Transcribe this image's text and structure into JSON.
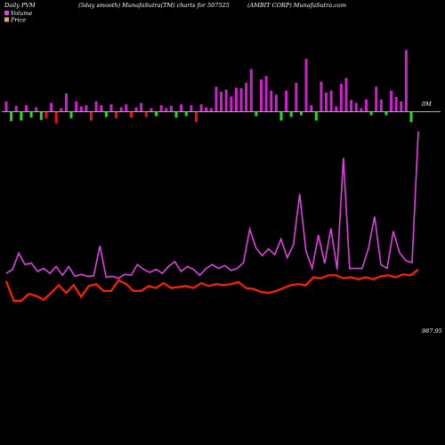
{
  "header": {
    "left": "Daily PVM",
    "mid": "(5day smooth) MunafaSutra(TM) charts for 507525",
    "right": "(AMBIT CORP) MunafaSutra.com"
  },
  "legend": {
    "volume_label": "Volume",
    "price_label": "Price",
    "volume_color": "#e040e0",
    "price_color": "#ff9966"
  },
  "labels": {
    "zero_volume": "0M",
    "last_price": "987.95"
  },
  "colors": {
    "background": "#000000",
    "zero_line": "#aaaaaa",
    "volume_up": "#cc22cc",
    "volume_down_green": "#22dd22",
    "volume_down_red": "#ee1111",
    "pvm_line": "#e040e0",
    "price_line": "#ff2200"
  },
  "chart_data": {
    "type": "bar-line",
    "title": "Daily PVM (5day smooth) MunafaSutra(TM) charts for 507525",
    "volume_bars": [
      {
        "v": 0.35,
        "c": "purple"
      },
      {
        "v": -0.32,
        "c": "green"
      },
      {
        "v": 0.2,
        "c": "purple"
      },
      {
        "v": -0.3,
        "c": "green"
      },
      {
        "v": 0.22,
        "c": "purple"
      },
      {
        "v": -0.2,
        "c": "green"
      },
      {
        "v": 0.15,
        "c": "purple"
      },
      {
        "v": -0.28,
        "c": "green"
      },
      {
        "v": -0.22,
        "c": "red"
      },
      {
        "v": 0.3,
        "c": "purple"
      },
      {
        "v": -0.4,
        "c": "red"
      },
      {
        "v": 0.12,
        "c": "purple"
      },
      {
        "v": 0.62,
        "c": "purple"
      },
      {
        "v": -0.22,
        "c": "green"
      },
      {
        "v": 0.35,
        "c": "purple"
      },
      {
        "v": 0.18,
        "c": "purple"
      },
      {
        "v": 0.22,
        "c": "purple"
      },
      {
        "v": -0.3,
        "c": "red"
      },
      {
        "v": 0.35,
        "c": "purple"
      },
      {
        "v": 0.22,
        "c": "purple"
      },
      {
        "v": -0.18,
        "c": "green"
      },
      {
        "v": 0.25,
        "c": "purple"
      },
      {
        "v": -0.22,
        "c": "red"
      },
      {
        "v": 0.15,
        "c": "purple"
      },
      {
        "v": 0.25,
        "c": "purple"
      },
      {
        "v": -0.2,
        "c": "red"
      },
      {
        "v": 0.15,
        "c": "purple"
      },
      {
        "v": 0.3,
        "c": "purple"
      },
      {
        "v": -0.18,
        "c": "red"
      },
      {
        "v": 0.12,
        "c": "purple"
      },
      {
        "v": -0.15,
        "c": "green"
      },
      {
        "v": 0.22,
        "c": "purple"
      },
      {
        "v": 0.12,
        "c": "purple"
      },
      {
        "v": 0.2,
        "c": "purple"
      },
      {
        "v": -0.2,
        "c": "green"
      },
      {
        "v": 0.25,
        "c": "purple"
      },
      {
        "v": -0.15,
        "c": "green"
      },
      {
        "v": 0.22,
        "c": "purple"
      },
      {
        "v": -0.35,
        "c": "red"
      },
      {
        "v": 0.25,
        "c": "purple"
      },
      {
        "v": 0.15,
        "c": "purple"
      },
      {
        "v": 0.12,
        "c": "purple"
      },
      {
        "v": 0.85,
        "c": "purple"
      },
      {
        "v": 0.68,
        "c": "purple"
      },
      {
        "v": 0.75,
        "c": "purple"
      },
      {
        "v": 0.52,
        "c": "purple"
      },
      {
        "v": 0.82,
        "c": "purple"
      },
      {
        "v": 0.8,
        "c": "purple"
      },
      {
        "v": 0.98,
        "c": "purple"
      },
      {
        "v": 1.45,
        "c": "purple"
      },
      {
        "v": -0.15,
        "c": "green"
      },
      {
        "v": 1.1,
        "c": "purple"
      },
      {
        "v": 1.22,
        "c": "purple"
      },
      {
        "v": 0.72,
        "c": "purple"
      },
      {
        "v": 0.58,
        "c": "purple"
      },
      {
        "v": -0.3,
        "c": "green"
      },
      {
        "v": 0.72,
        "c": "purple"
      },
      {
        "v": -0.18,
        "c": "green"
      },
      {
        "v": 0.98,
        "c": "purple"
      },
      {
        "v": -0.12,
        "c": "green"
      },
      {
        "v": 1.8,
        "c": "purple"
      },
      {
        "v": 0.22,
        "c": "purple"
      },
      {
        "v": -0.3,
        "c": "green"
      },
      {
        "v": 1.02,
        "c": "purple"
      },
      {
        "v": 0.65,
        "c": "purple"
      },
      {
        "v": 0.72,
        "c": "purple"
      },
      {
        "v": 0.18,
        "c": "purple"
      },
      {
        "v": 0.95,
        "c": "purple"
      },
      {
        "v": 1.15,
        "c": "purple"
      },
      {
        "v": 0.4,
        "c": "purple"
      },
      {
        "v": 0.3,
        "c": "purple"
      },
      {
        "v": 0.12,
        "c": "purple"
      },
      {
        "v": 0.42,
        "c": "purple"
      },
      {
        "v": -0.12,
        "c": "green"
      },
      {
        "v": 0.85,
        "c": "purple"
      },
      {
        "v": 0.42,
        "c": "purple"
      },
      {
        "v": -0.12,
        "c": "green"
      },
      {
        "v": 0.72,
        "c": "purple"
      },
      {
        "v": 0.5,
        "c": "purple"
      },
      {
        "v": 0.35,
        "c": "purple"
      },
      {
        "v": 2.1,
        "c": "purple"
      },
      {
        "v": -0.35,
        "c": "green"
      }
    ],
    "pvm_line": [
      49.5,
      51.5,
      59.8,
      54.0,
      54.8,
      50.5,
      52.0,
      49.5,
      53.0,
      48.5,
      53.0,
      48.0,
      49.0,
      48.0,
      48.2,
      63.5,
      47.5,
      48.0,
      47.0,
      49.0,
      48.5,
      54.0,
      51.5,
      50.0,
      51.5,
      49.5,
      53.0,
      55.5,
      50.5,
      53.0,
      51.5,
      48.5,
      52.0,
      54.0,
      52.0,
      53.5,
      51.0,
      52.0,
      55.0,
      72.0,
      62.5,
      58.5,
      62.0,
      59.0,
      67.0,
      57.5,
      64.0,
      90.0,
      61.0,
      52.0,
      69.0,
      54.5,
      72.5,
      51.5,
      108.5,
      52.0,
      52.0,
      52.0,
      62.0,
      78.5,
      54.0,
      52.0,
      71.0,
      60.0,
      56.0,
      55.0,
      122.0
    ],
    "price_line": [
      45.5,
      35.5,
      35.5,
      39.0,
      38.0,
      36.0,
      39.5,
      43.5,
      39.5,
      43.5,
      37.5,
      43.0,
      44.0,
      40.5,
      40.5,
      46.0,
      44.0,
      40.5,
      40.5,
      43.0,
      42.0,
      44.5,
      42.0,
      42.5,
      43.0,
      42.0,
      44.5,
      43.0,
      44.0,
      43.5,
      44.0,
      45.0,
      42.0,
      41.5,
      40.0,
      39.5,
      40.5,
      42.0,
      43.5,
      44.0,
      43.5,
      47.5,
      47.0,
      48.5,
      48.5,
      47.0,
      47.5,
      46.5,
      47.5,
      46.5,
      48.0,
      48.5,
      47.5,
      49.0,
      48.5,
      51.5
    ]
  }
}
